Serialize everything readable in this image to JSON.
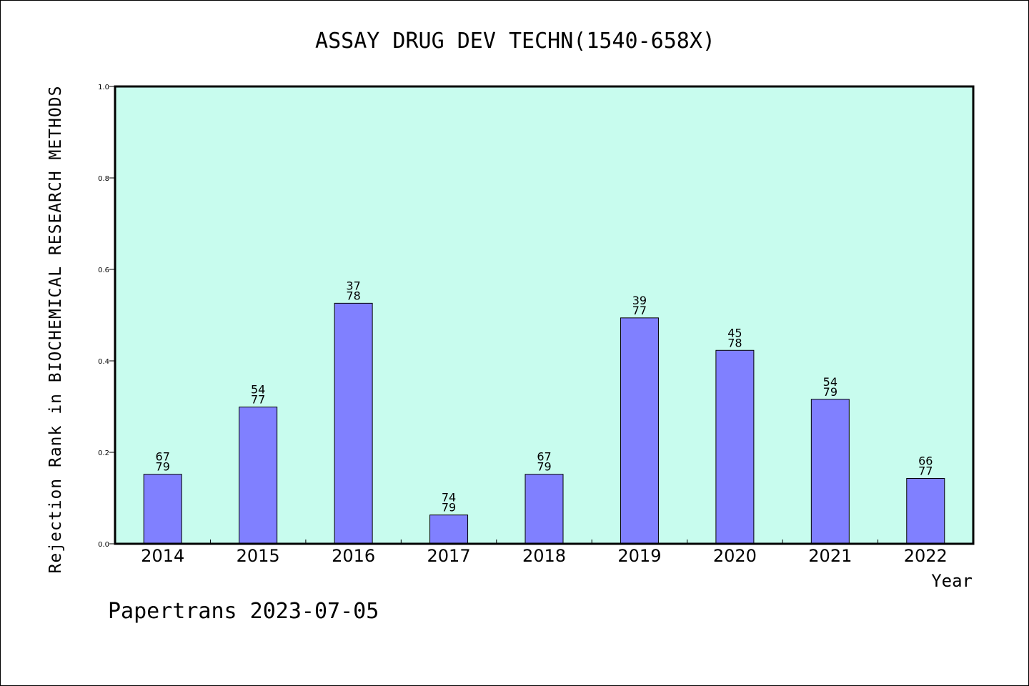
{
  "footer": "Papertrans 2023-07-05",
  "colors": {
    "plot_bg": "#c8fcee",
    "bar": "#8080ff"
  },
  "chart_data": {
    "type": "bar",
    "title": "ASSAY DRUG DEV TECHN(1540-658X)",
    "xlabel": "Year",
    "ylabel": "Rejection Rank in BIOCHEMICAL RESEARCH METHODS",
    "ylim": [
      0.0,
      1.0
    ],
    "yticks": [
      "0.0",
      "0.2",
      "0.4",
      "0.6",
      "0.8",
      "1.0"
    ],
    "categories": [
      "2014",
      "2015",
      "2016",
      "2017",
      "2018",
      "2019",
      "2020",
      "2021",
      "2022"
    ],
    "values": [
      0.152,
      0.299,
      0.526,
      0.063,
      0.152,
      0.494,
      0.423,
      0.316,
      0.143
    ],
    "labels_top": [
      "67",
      "54",
      "37",
      "74",
      "67",
      "39",
      "45",
      "54",
      "66"
    ],
    "labels_bottom": [
      "79",
      "77",
      "78",
      "79",
      "79",
      "77",
      "78",
      "79",
      "77"
    ],
    "grid": false,
    "legend": "none"
  }
}
